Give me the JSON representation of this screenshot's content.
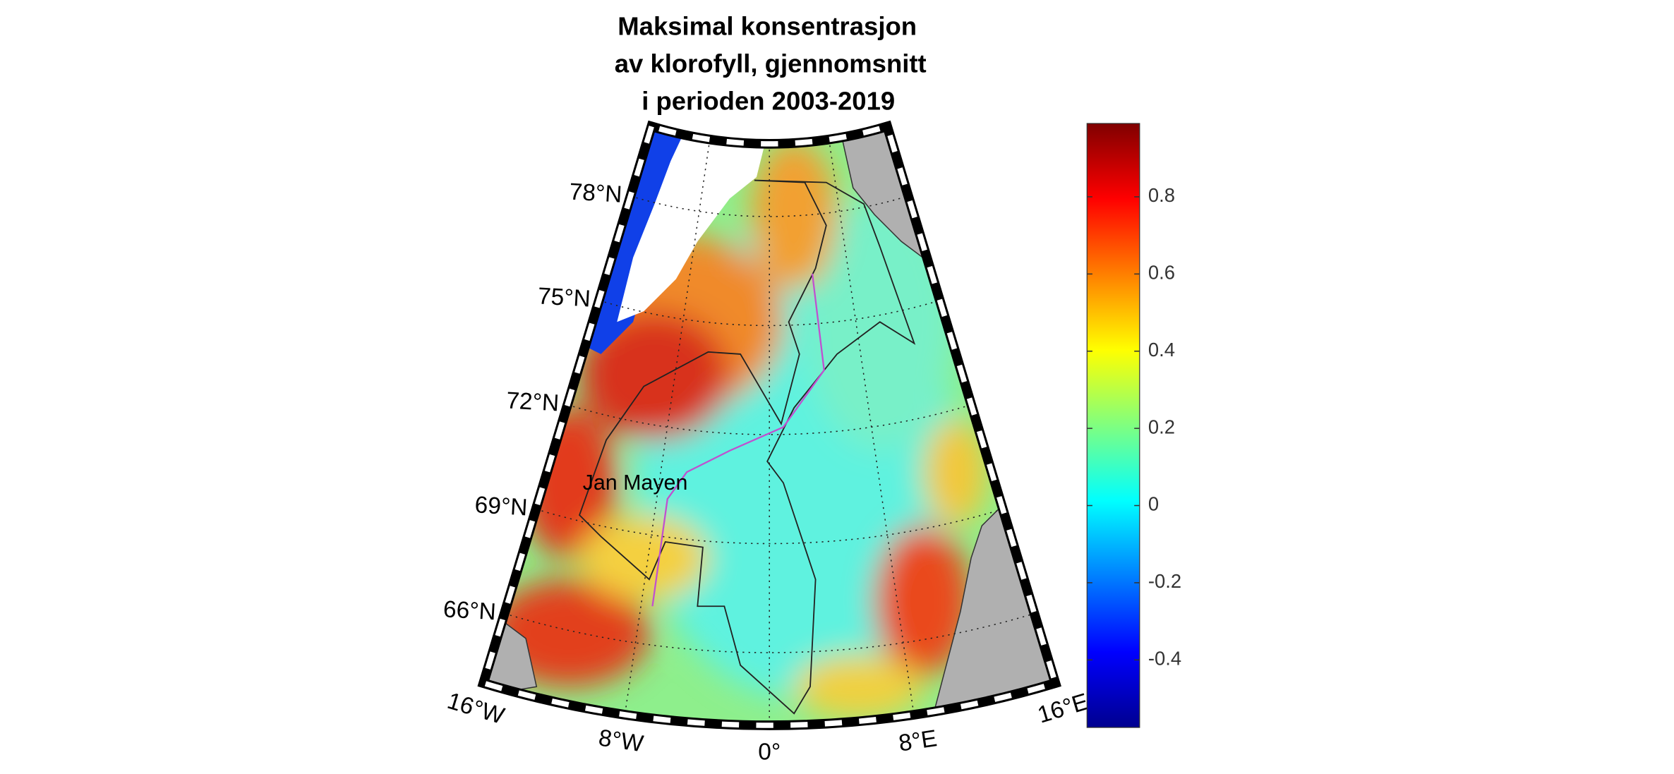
{
  "chart_data": {
    "type": "map",
    "title": [
      "Maksimal konsentrasjon",
      "av klorofyll, gjennomsnitt",
      "i perioden 2003-2019"
    ],
    "annotation": "Jan Mayen",
    "lonlim": [
      -16,
      16
    ],
    "latlim": [
      64,
      80
    ],
    "lonticks": [
      {
        "value": -16,
        "label": "16°W"
      },
      {
        "value": -8,
        "label": "8°W"
      },
      {
        "value": 0,
        "label": "0°"
      },
      {
        "value": 8,
        "label": "8°E"
      },
      {
        "value": 16,
        "label": "16°E"
      }
    ],
    "latticks": [
      {
        "value": 66,
        "label": "66°N"
      },
      {
        "value": 69,
        "label": "69°N"
      },
      {
        "value": 72,
        "label": "72°N"
      },
      {
        "value": 75,
        "label": "75°N"
      },
      {
        "value": 78,
        "label": "78°N"
      }
    ],
    "clim": [
      -0.575,
      0.99
    ],
    "cticks": [
      -0.4,
      -0.2,
      0,
      0.2,
      0.4,
      0.6,
      0.8
    ],
    "colormap": "jet"
  }
}
